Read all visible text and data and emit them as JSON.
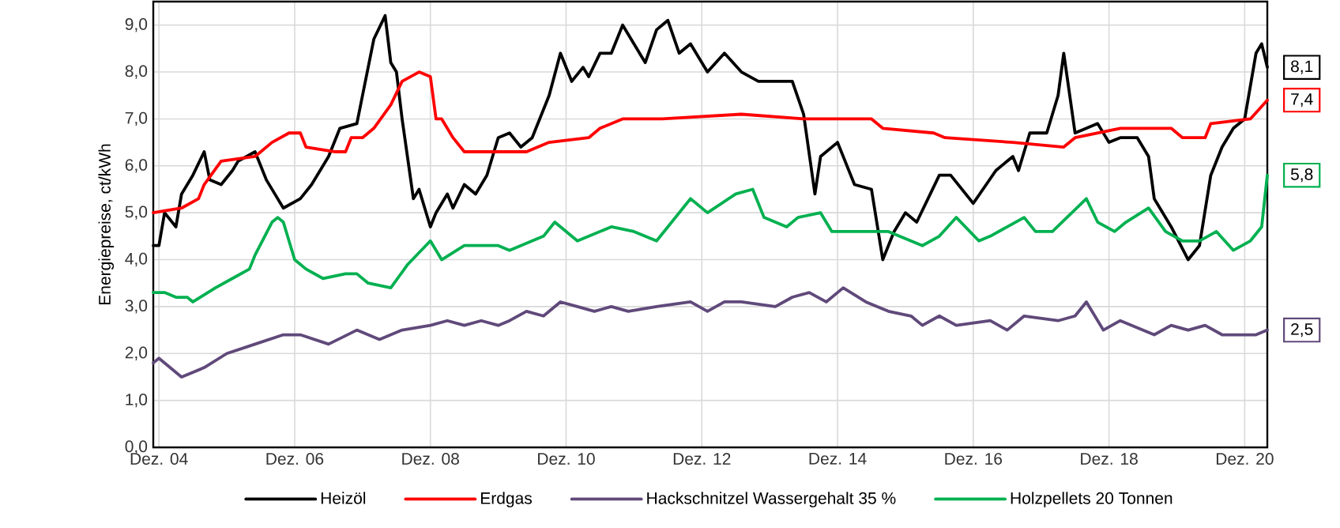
{
  "chart_data": {
    "type": "line",
    "ylabel": "Energiepreise, ct/kWh",
    "xlim": [
      "2004-11",
      "2021-04"
    ],
    "xticks": [
      {
        "value": "2004-12",
        "label": "Dez. 04"
      },
      {
        "value": "2006-12",
        "label": "Dez. 06"
      },
      {
        "value": "2008-12",
        "label": "Dez. 08"
      },
      {
        "value": "2010-12",
        "label": "Dez. 10"
      },
      {
        "value": "2012-12",
        "label": "Dez. 12"
      },
      {
        "value": "2014-12",
        "label": "Dez. 14"
      },
      {
        "value": "2016-12",
        "label": "Dez. 16"
      },
      {
        "value": "2018-12",
        "label": "Dez. 18"
      },
      {
        "value": "2020-12",
        "label": "Dez. 20"
      }
    ],
    "ylim": [
      0,
      9.5
    ],
    "yticks": [
      {
        "value": 0,
        "label": "0,0"
      },
      {
        "value": 1,
        "label": "1,0"
      },
      {
        "value": 2,
        "label": "2,0"
      },
      {
        "value": 3,
        "label": "3,0"
      },
      {
        "value": 4,
        "label": "4,0"
      },
      {
        "value": 5,
        "label": "5,0"
      },
      {
        "value": 6,
        "label": "6,0"
      },
      {
        "value": 7,
        "label": "7,0"
      },
      {
        "value": 8,
        "label": "8,0"
      },
      {
        "value": 9,
        "label": "9,0"
      }
    ],
    "grid": true,
    "legend": "bottom",
    "series": [
      {
        "name": "Heizöl",
        "color": "#000000",
        "x": [
          "2004-11",
          "2004-12",
          "2005-01",
          "2005-03",
          "2005-04",
          "2005-06",
          "2005-08",
          "2005-09",
          "2005-11",
          "2006-01",
          "2006-02",
          "2006-05",
          "2006-07",
          "2006-09",
          "2006-10",
          "2007-01",
          "2007-03",
          "2007-06",
          "2007-08",
          "2007-11",
          "2007-12",
          "2008-02",
          "2008-04",
          "2008-05",
          "2008-06",
          "2008-07",
          "2008-09",
          "2008-10",
          "2008-12",
          "2009-01",
          "2009-03",
          "2009-04",
          "2009-06",
          "2009-08",
          "2009-10",
          "2009-12",
          "2010-02",
          "2010-04",
          "2010-06",
          "2010-09",
          "2010-11",
          "2011-01",
          "2011-03",
          "2011-04",
          "2011-06",
          "2011-08",
          "2011-10",
          "2011-12",
          "2012-02",
          "2012-04",
          "2012-06",
          "2012-08",
          "2012-10",
          "2013-01",
          "2013-04",
          "2013-07",
          "2013-10",
          "2014-04",
          "2014-06",
          "2014-08",
          "2014-09",
          "2014-12",
          "2015-03",
          "2015-06",
          "2015-08",
          "2015-10",
          "2015-12",
          "2016-02",
          "2016-06",
          "2016-08",
          "2016-12",
          "2017-04",
          "2017-07",
          "2017-08",
          "2017-10",
          "2018-01",
          "2018-03",
          "2018-04",
          "2018-06",
          "2018-08",
          "2018-10",
          "2018-12",
          "2019-02",
          "2019-05",
          "2019-07",
          "2019-08",
          "2019-11",
          "2020-02",
          "2020-04",
          "2020-06",
          "2020-08",
          "2020-10",
          "2020-12",
          "2021-02",
          "2021-03",
          "2021-04"
        ],
        "values": [
          4.3,
          4.3,
          5.0,
          4.7,
          5.4,
          5.8,
          6.3,
          5.7,
          5.6,
          5.9,
          6.1,
          6.3,
          5.7,
          5.3,
          5.1,
          5.3,
          5.6,
          6.2,
          6.8,
          6.9,
          7.5,
          8.7,
          9.2,
          8.2,
          8.0,
          7.0,
          5.3,
          5.5,
          4.7,
          5.0,
          5.4,
          5.1,
          5.6,
          5.4,
          5.8,
          6.6,
          6.7,
          6.4,
          6.6,
          7.5,
          8.4,
          7.8,
          8.1,
          7.9,
          8.4,
          8.4,
          9.0,
          8.6,
          8.2,
          8.9,
          9.1,
          8.4,
          8.6,
          8.0,
          8.4,
          8.0,
          7.8,
          7.8,
          7.1,
          5.4,
          6.2,
          6.5,
          5.6,
          5.5,
          4.0,
          4.6,
          5.0,
          4.8,
          5.8,
          5.8,
          5.2,
          5.9,
          6.2,
          5.9,
          6.7,
          6.7,
          7.5,
          8.4,
          6.7,
          6.8,
          6.9,
          6.5,
          6.6,
          6.6,
          6.2,
          5.3,
          4.7,
          4.0,
          4.3,
          5.8,
          6.4,
          6.8,
          7.0,
          8.4,
          8.6,
          8.1
        ],
        "value_labels": [
          null,
          null,
          null,
          null,
          null,
          null,
          null,
          null,
          null,
          null,
          null,
          null,
          null,
          null,
          null,
          null,
          null,
          null,
          null,
          null,
          null,
          null,
          null,
          null,
          null,
          null,
          null,
          null,
          null,
          null,
          null,
          null,
          null,
          null,
          null,
          null,
          null,
          null,
          null,
          null,
          null,
          null,
          null,
          null,
          null,
          null,
          null,
          null,
          null,
          null,
          null,
          null,
          null,
          null,
          null,
          null,
          null,
          null,
          null,
          null,
          null,
          null,
          null,
          null,
          null,
          null,
          null,
          null,
          null,
          null,
          null,
          null,
          null,
          null,
          null,
          null,
          null,
          null,
          null,
          null,
          null,
          null,
          null,
          null,
          null,
          null,
          null,
          null,
          null,
          null,
          null,
          null,
          null,
          null,
          null,
          "8,1"
        ]
      },
      {
        "name": "Erdgas",
        "color": "#ff0000",
        "x": [
          "2004-11",
          "2005-04",
          "2005-07",
          "2005-08",
          "2005-11",
          "2006-05",
          "2006-08",
          "2006-11",
          "2007-01",
          "2007-02",
          "2007-07",
          "2007-09",
          "2007-10",
          "2007-12",
          "2008-02",
          "2008-05",
          "2008-07",
          "2008-10",
          "2008-12",
          "2009-01",
          "2009-02",
          "2009-04",
          "2009-06",
          "2009-08",
          "2010-02",
          "2010-05",
          "2010-09",
          "2011-04",
          "2011-06",
          "2011-10",
          "2012-05",
          "2013-07",
          "2014-06",
          "2015-06",
          "2015-08",
          "2016-05",
          "2016-07",
          "2017-07",
          "2018-04",
          "2018-06",
          "2019-02",
          "2019-11",
          "2020-01",
          "2020-05",
          "2020-06",
          "2021-01",
          "2021-04"
        ],
        "values": [
          5.0,
          5.1,
          5.3,
          5.6,
          6.1,
          6.2,
          6.5,
          6.7,
          6.7,
          6.4,
          6.3,
          6.3,
          6.6,
          6.6,
          6.8,
          7.3,
          7.8,
          8.0,
          7.9,
          7.0,
          7.0,
          6.6,
          6.3,
          6.3,
          6.3,
          6.3,
          6.5,
          6.6,
          6.8,
          7.0,
          7.0,
          7.1,
          7.0,
          7.0,
          6.8,
          6.7,
          6.6,
          6.5,
          6.4,
          6.6,
          6.8,
          6.8,
          6.6,
          6.6,
          6.9,
          7.0,
          7.4
        ],
        "value_labels": [
          null,
          null,
          null,
          null,
          null,
          null,
          null,
          null,
          null,
          null,
          null,
          null,
          null,
          null,
          null,
          null,
          null,
          null,
          null,
          null,
          null,
          null,
          null,
          null,
          null,
          null,
          null,
          null,
          null,
          null,
          null,
          null,
          null,
          null,
          null,
          null,
          null,
          null,
          null,
          null,
          null,
          null,
          null,
          null,
          null,
          null,
          "7,4"
        ]
      },
      {
        "name": "Hackschnitzel Wassergehalt 35 %",
        "color": "#60497a",
        "x": [
          "2004-11",
          "2004-12",
          "2005-04",
          "2005-08",
          "2005-12",
          "2006-05",
          "2006-10",
          "2007-01",
          "2007-06",
          "2007-11",
          "2008-03",
          "2008-07",
          "2008-12",
          "2009-03",
          "2009-06",
          "2009-09",
          "2009-12",
          "2010-02",
          "2010-05",
          "2010-08",
          "2010-11",
          "2011-02",
          "2011-05",
          "2011-08",
          "2011-11",
          "2012-04",
          "2012-10",
          "2013-01",
          "2013-04",
          "2013-07",
          "2014-01",
          "2014-04",
          "2014-07",
          "2014-10",
          "2015-01",
          "2015-05",
          "2015-09",
          "2016-01",
          "2016-03",
          "2016-06",
          "2016-09",
          "2017-03",
          "2017-06",
          "2017-09",
          "2018-03",
          "2018-06",
          "2018-08",
          "2018-11",
          "2019-02",
          "2019-08",
          "2019-11",
          "2020-02",
          "2020-05",
          "2020-08",
          "2020-10",
          "2021-02",
          "2021-04"
        ],
        "values": [
          1.8,
          1.9,
          1.5,
          1.7,
          2.0,
          2.2,
          2.4,
          2.4,
          2.2,
          2.5,
          2.3,
          2.5,
          2.6,
          2.7,
          2.6,
          2.7,
          2.6,
          2.7,
          2.9,
          2.8,
          3.1,
          3.0,
          2.9,
          3.0,
          2.9,
          3.0,
          3.1,
          2.9,
          3.1,
          3.1,
          3.0,
          3.2,
          3.3,
          3.1,
          3.4,
          3.1,
          2.9,
          2.8,
          2.6,
          2.8,
          2.6,
          2.7,
          2.5,
          2.8,
          2.7,
          2.8,
          3.1,
          2.5,
          2.7,
          2.4,
          2.6,
          2.5,
          2.6,
          2.4,
          2.4,
          2.4,
          2.5
        ],
        "value_labels": [
          null,
          null,
          null,
          null,
          null,
          null,
          null,
          null,
          null,
          null,
          null,
          null,
          null,
          null,
          null,
          null,
          null,
          null,
          null,
          null,
          null,
          null,
          null,
          null,
          null,
          null,
          null,
          null,
          null,
          null,
          null,
          null,
          null,
          null,
          null,
          null,
          null,
          null,
          null,
          null,
          null,
          null,
          null,
          null,
          null,
          null,
          null,
          null,
          null,
          null,
          null,
          null,
          null,
          null,
          null,
          null,
          "2,5"
        ]
      },
      {
        "name": "Holzpellets 20 Tonnen",
        "color": "#00b050",
        "x": [
          "2004-11",
          "2005-01",
          "2005-03",
          "2005-05",
          "2005-06",
          "2005-10",
          "2006-01",
          "2006-04",
          "2006-05",
          "2006-08",
          "2006-09",
          "2006-10",
          "2006-12",
          "2007-02",
          "2007-05",
          "2007-09",
          "2007-11",
          "2008-01",
          "2008-05",
          "2008-08",
          "2008-12",
          "2009-02",
          "2009-06",
          "2009-12",
          "2010-02",
          "2010-08",
          "2010-10",
          "2011-02",
          "2011-08",
          "2011-12",
          "2012-04",
          "2012-10",
          "2013-01",
          "2013-06",
          "2013-09",
          "2013-11",
          "2014-03",
          "2014-05",
          "2014-09",
          "2014-11",
          "2015-03",
          "2015-09",
          "2016-03",
          "2016-06",
          "2016-09",
          "2017-01",
          "2017-03",
          "2017-09",
          "2017-11",
          "2018-02",
          "2018-08",
          "2018-10",
          "2019-01",
          "2019-03",
          "2019-07",
          "2019-10",
          "2020-01",
          "2020-04",
          "2020-07",
          "2020-10",
          "2021-01",
          "2021-03",
          "2021-04"
        ],
        "values": [
          3.3,
          3.3,
          3.2,
          3.2,
          3.1,
          3.4,
          3.6,
          3.8,
          4.1,
          4.8,
          4.9,
          4.8,
          4.0,
          3.8,
          3.6,
          3.7,
          3.7,
          3.5,
          3.4,
          3.9,
          4.4,
          4.0,
          4.3,
          4.3,
          4.2,
          4.5,
          4.8,
          4.4,
          4.7,
          4.6,
          4.4,
          5.3,
          5.0,
          5.4,
          5.5,
          4.9,
          4.7,
          4.9,
          5.0,
          4.6,
          4.6,
          4.6,
          4.3,
          4.5,
          4.9,
          4.4,
          4.5,
          4.9,
          4.6,
          4.6,
          5.3,
          4.8,
          4.6,
          4.8,
          5.1,
          4.6,
          4.4,
          4.4,
          4.6,
          4.2,
          4.4,
          4.7,
          5.8
        ],
        "value_labels": [
          null,
          null,
          null,
          null,
          null,
          null,
          null,
          null,
          null,
          null,
          null,
          null,
          null,
          null,
          null,
          null,
          null,
          null,
          null,
          null,
          null,
          null,
          null,
          null,
          null,
          null,
          null,
          null,
          null,
          null,
          null,
          null,
          null,
          null,
          null,
          null,
          null,
          null,
          null,
          null,
          null,
          null,
          null,
          null,
          null,
          null,
          null,
          null,
          null,
          null,
          null,
          null,
          null,
          null,
          null,
          null,
          null,
          null,
          null,
          null,
          null,
          null,
          "5,8"
        ]
      }
    ]
  }
}
